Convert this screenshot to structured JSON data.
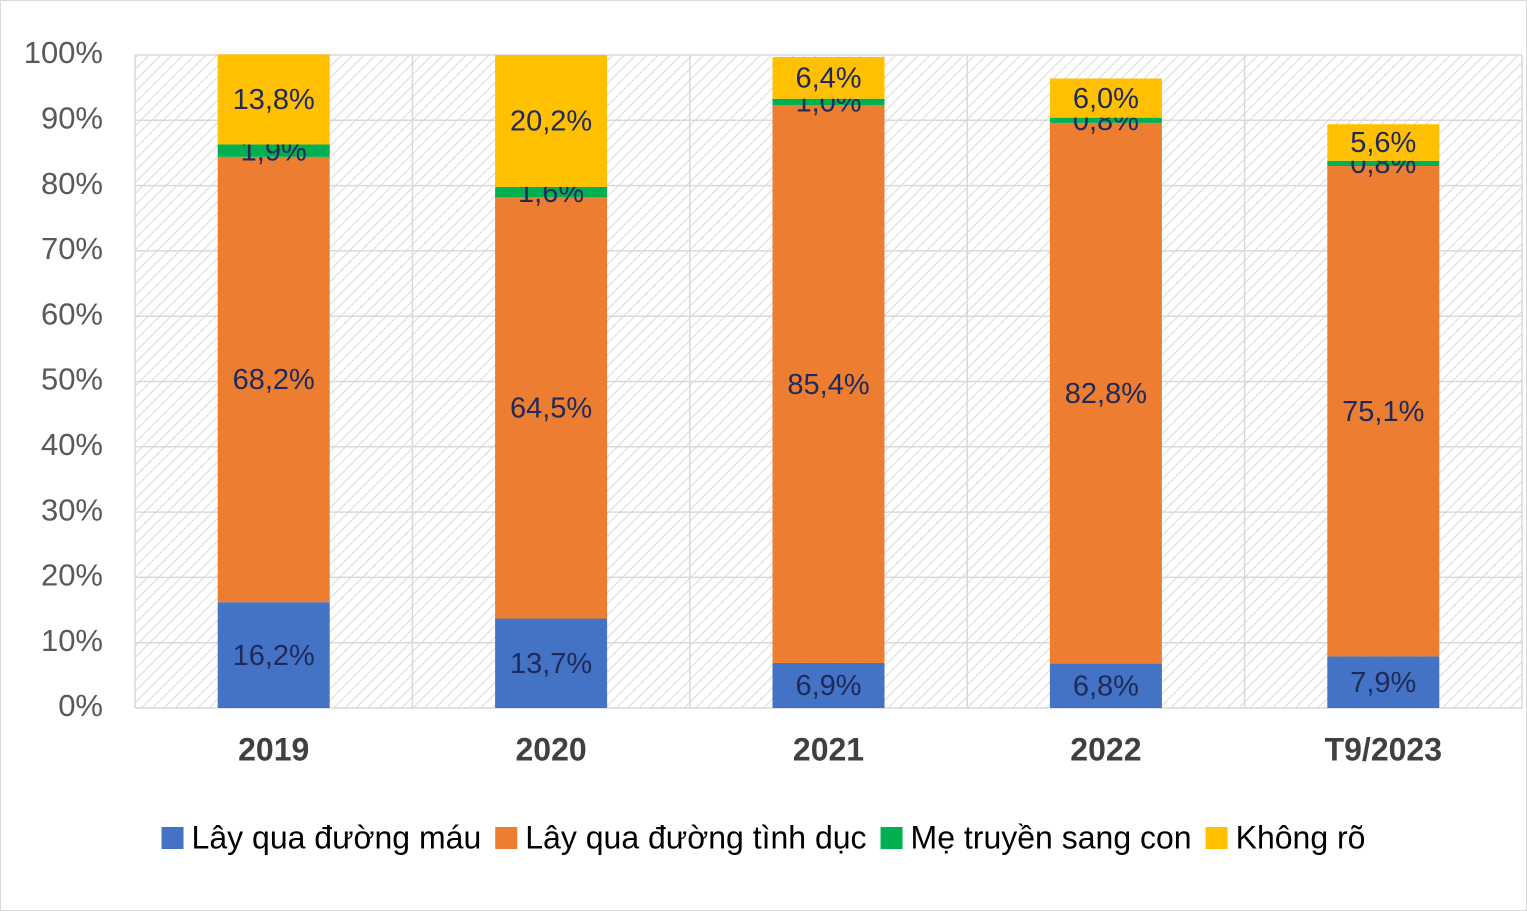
{
  "chart_data": {
    "type": "stacked_bar",
    "categories": [
      "2019",
      "2020",
      "2021",
      "2022",
      "T9/2023"
    ],
    "series": [
      {
        "name": "Lây qua đường máu",
        "color": "#4472c4",
        "values": [
          16.2,
          13.7,
          6.9,
          6.8,
          7.9
        ],
        "value_labels": [
          "16,2%",
          "13,7%",
          "6,9%",
          "6,8%",
          "7,9%"
        ]
      },
      {
        "name": "Lây qua đường tình dục",
        "color": "#ed7d31",
        "values": [
          68.2,
          64.5,
          85.4,
          82.8,
          75.1
        ],
        "value_labels": [
          "68,2%",
          "64,5%",
          "85,4%",
          "82,8%",
          "75,1%"
        ]
      },
      {
        "name": "Mẹ truyền sang con",
        "color": "#00b050",
        "values": [
          1.9,
          1.6,
          1.0,
          0.8,
          0.8
        ],
        "value_labels": [
          "1,9%",
          "1,6%",
          "1,0%",
          "0,8%",
          "0,8%"
        ]
      },
      {
        "name": "Không rõ",
        "color": "#ffc000",
        "values": [
          13.8,
          20.2,
          6.4,
          6.0,
          5.6
        ],
        "value_labels": [
          "13,8%",
          "20,2%",
          "6,4%",
          "6,0%",
          "5,6%"
        ]
      }
    ],
    "ylim": [
      0,
      100
    ],
    "yticks": [
      {
        "value": 0,
        "label": "0%"
      },
      {
        "value": 10,
        "label": "10%"
      },
      {
        "value": 20,
        "label": "20%"
      },
      {
        "value": 30,
        "label": "30%"
      },
      {
        "value": 40,
        "label": "40%"
      },
      {
        "value": 50,
        "label": "50%"
      },
      {
        "value": 60,
        "label": "60%"
      },
      {
        "value": 70,
        "label": "70%"
      },
      {
        "value": 80,
        "label": "80%"
      },
      {
        "value": 90,
        "label": "90%"
      },
      {
        "value": 100,
        "label": "100%"
      }
    ],
    "grid": true,
    "legend": "bottom"
  }
}
